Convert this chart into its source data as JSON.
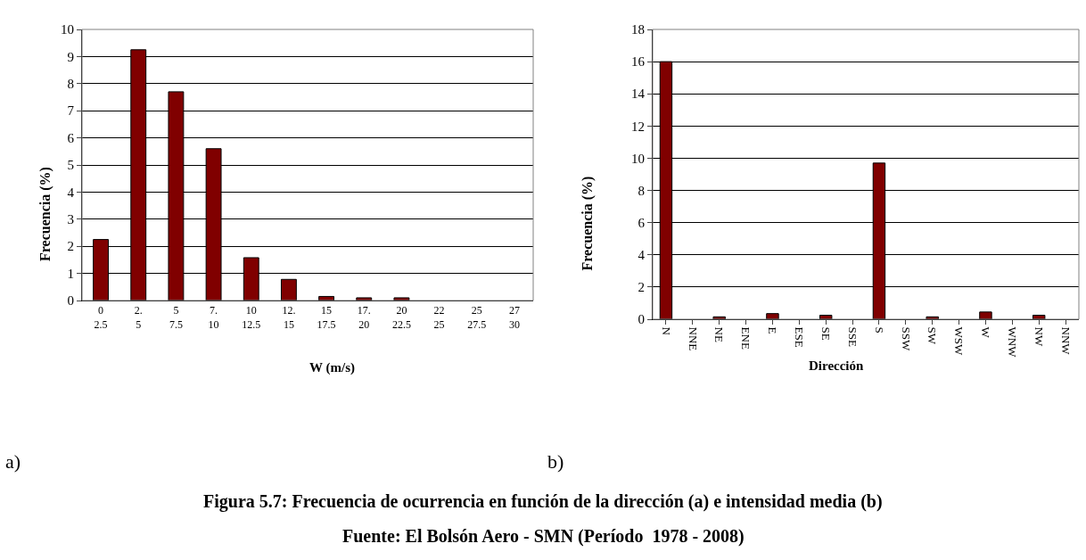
{
  "chart_data": [
    {
      "type": "bar",
      "xlabel": "W (m/s)",
      "ylabel": "Frecuencia (%)",
      "categories": [
        "0\n2.5",
        "2.\n5",
        "5\n7.5",
        "7.\n10",
        "10\n12.5",
        "12.\n15",
        "15\n17.5",
        "17.\n20",
        "20\n22.5",
        "22\n25",
        "25\n27.5",
        "27\n30"
      ],
      "values": [
        2.25,
        9.25,
        7.7,
        5.6,
        1.58,
        0.78,
        0.15,
        0.1,
        0.1,
        0,
        0,
        0
      ],
      "color": "#800000",
      "ylim": [
        0,
        10
      ],
      "yticks": [
        0,
        1,
        2,
        3,
        4,
        5,
        6,
        7,
        8,
        9,
        10
      ],
      "grid": "y",
      "annotations": [
        "a)"
      ]
    },
    {
      "type": "bar",
      "xlabel": "Dirección",
      "ylabel": "Frecuencia (%)",
      "categories": [
        "N",
        "NNE",
        "NE",
        "ENE",
        "E",
        "ESE",
        "SE",
        "SSE",
        "S",
        "SSW",
        "SW",
        "WSW",
        "W",
        "WNW",
        "NW",
        "NNW"
      ],
      "values": [
        16,
        0,
        0.15,
        0,
        0.35,
        0,
        0.25,
        0,
        9.7,
        0,
        0.15,
        0,
        0.45,
        0,
        0.25,
        0
      ],
      "color": "#800000",
      "ylim": [
        0,
        18
      ],
      "yticks": [
        0,
        2,
        4,
        6,
        8,
        10,
        12,
        14,
        16,
        18
      ],
      "grid": "y",
      "annotations": [
        "b)",
        "Figura 5.7: Frecuencia de ocurrencia en función de la dirección (a) e intensidad media (b)",
        "Fuente: El Bolsón Aero - SMN (Período  1978 - 2008)"
      ]
    }
  ]
}
